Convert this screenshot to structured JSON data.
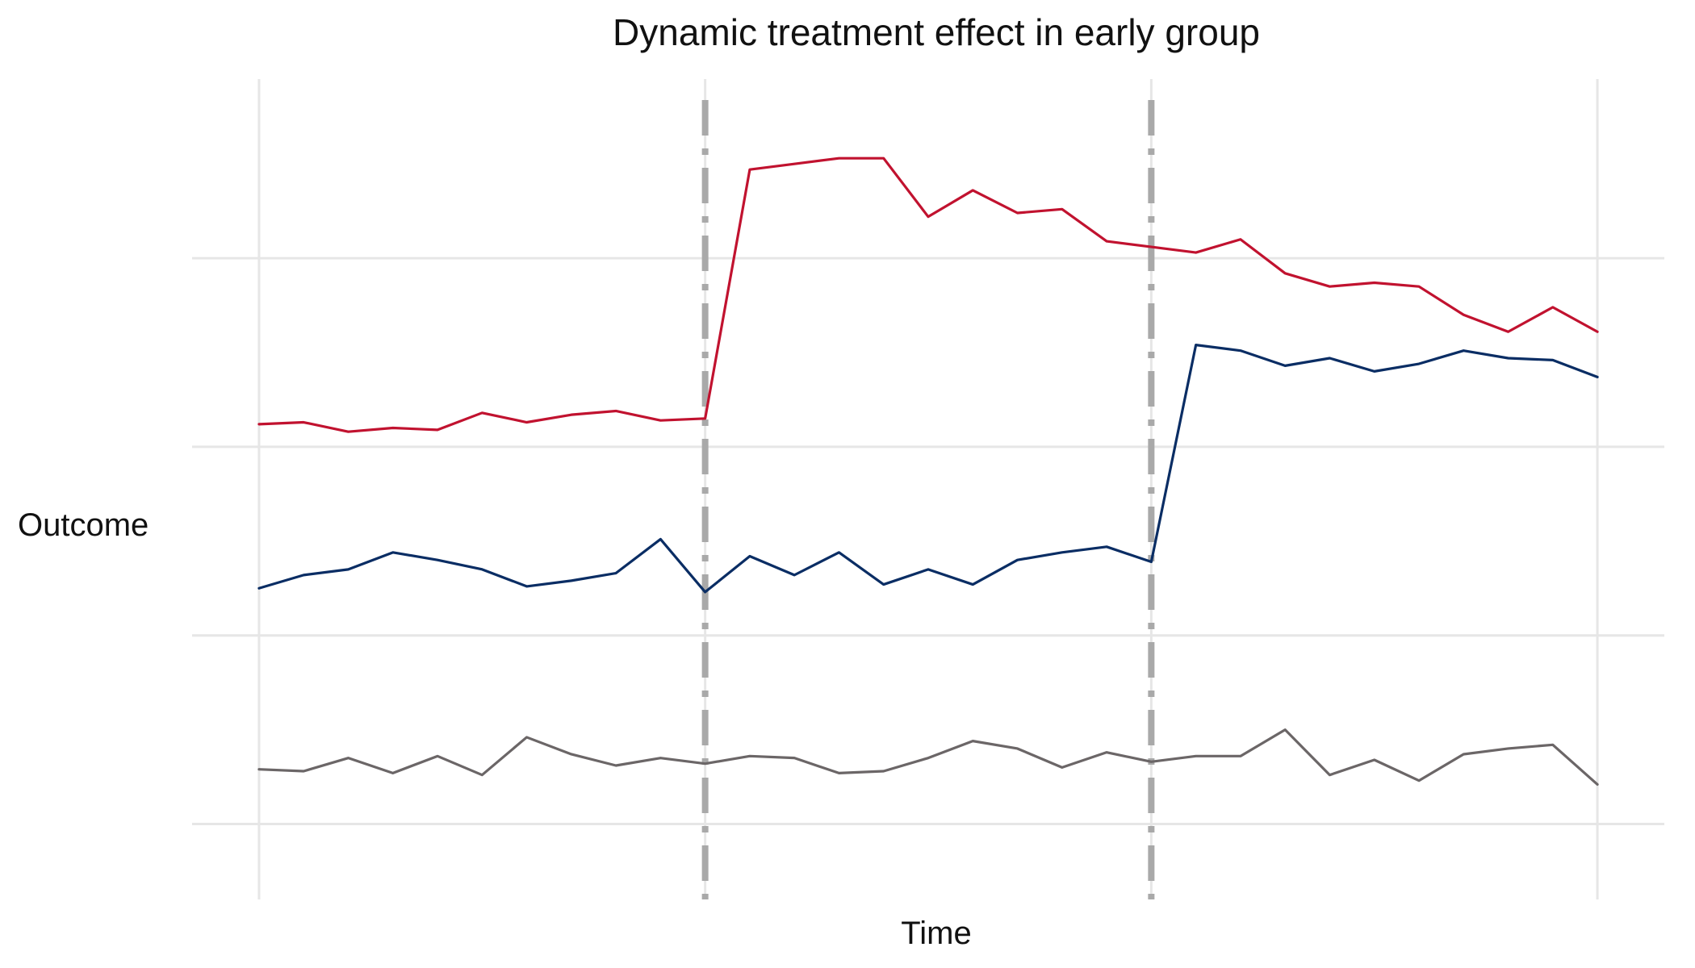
{
  "chart_data": {
    "type": "line",
    "title": "Dynamic treatment effect in early group",
    "xlabel": "Time",
    "ylabel": "Outcome",
    "x": [
      1,
      2,
      3,
      4,
      5,
      6,
      7,
      8,
      9,
      10,
      11,
      12,
      13,
      14,
      15,
      16,
      17,
      18,
      19,
      20,
      21,
      22,
      23,
      24,
      25,
      26,
      27,
      28,
      29,
      30,
      31
    ],
    "xlim": [
      -0.5,
      32.5
    ],
    "ylim": [
      -0.4,
      3.95
    ],
    "grid": true,
    "legend": "none",
    "event_lines": [
      11,
      21
    ],
    "series": [
      {
        "color": "#c1122f",
        "values": [
          2.12,
          2.13,
          2.08,
          2.1,
          2.09,
          2.18,
          2.13,
          2.17,
          2.19,
          2.14,
          2.15,
          3.47,
          3.5,
          3.53,
          3.53,
          3.22,
          3.36,
          3.24,
          3.26,
          3.09,
          3.06,
          3.03,
          3.1,
          2.92,
          2.85,
          2.87,
          2.85,
          2.7,
          2.61,
          2.74,
          2.61
        ]
      },
      {
        "color": "#0a2d64",
        "values": [
          1.25,
          1.32,
          1.35,
          1.44,
          1.4,
          1.35,
          1.26,
          1.29,
          1.33,
          1.51,
          1.23,
          1.42,
          1.32,
          1.44,
          1.27,
          1.35,
          1.27,
          1.4,
          1.44,
          1.47,
          1.39,
          2.54,
          2.51,
          2.43,
          2.47,
          2.4,
          2.44,
          2.51,
          2.47,
          2.46,
          2.37
        ]
      },
      {
        "color": "#6b6667",
        "values": [
          0.29,
          0.28,
          0.35,
          0.27,
          0.36,
          0.26,
          0.46,
          0.37,
          0.31,
          0.35,
          0.32,
          0.36,
          0.35,
          0.27,
          0.28,
          0.35,
          0.44,
          0.4,
          0.3,
          0.38,
          0.33,
          0.36,
          0.36,
          0.5,
          0.26,
          0.34,
          0.23,
          0.37,
          0.4,
          0.42,
          0.21
        ]
      }
    ]
  }
}
